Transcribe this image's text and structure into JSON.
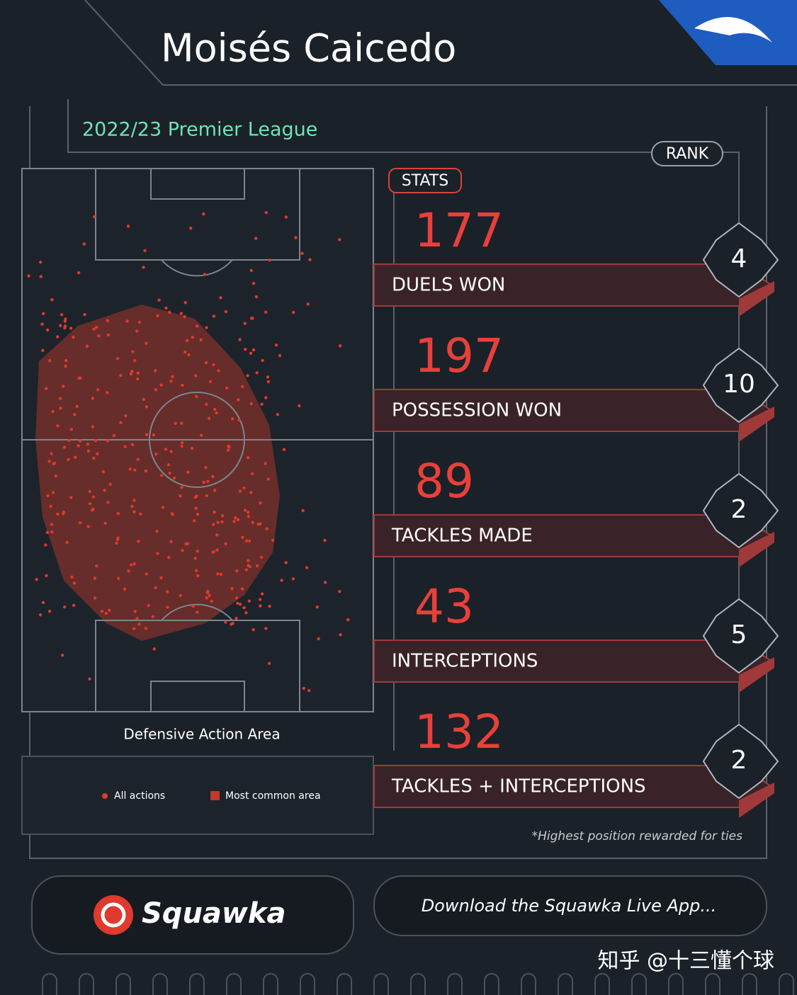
{
  "header": {
    "title": "Moisés Caicedo",
    "subtitle": "2022/23 Premier League"
  },
  "rank_label": "RANK",
  "stats_label": "STATS",
  "stats": [
    {
      "value": 177,
      "label": "DUELS WON",
      "rank": 4
    },
    {
      "value": 197,
      "label": "POSSESSION WON",
      "rank": 10
    },
    {
      "value": 89,
      "label": "TACKLES MADE",
      "rank": 2
    },
    {
      "value": 43,
      "label": "INTERCEPTIONS",
      "rank": 5
    },
    {
      "value": 132,
      "label": "TACKLES + INTERCEPTIONS",
      "rank": 2
    }
  ],
  "pitch": {
    "caption": "Defensive Action Area",
    "legend": [
      "All actions",
      "Most common area"
    ]
  },
  "footnote": "*Highest position rewarded for ties",
  "footer": {
    "brand": "Squawka",
    "cta": "Download the Squawka Live App..."
  },
  "watermark": "知乎 @十三懂个球"
}
